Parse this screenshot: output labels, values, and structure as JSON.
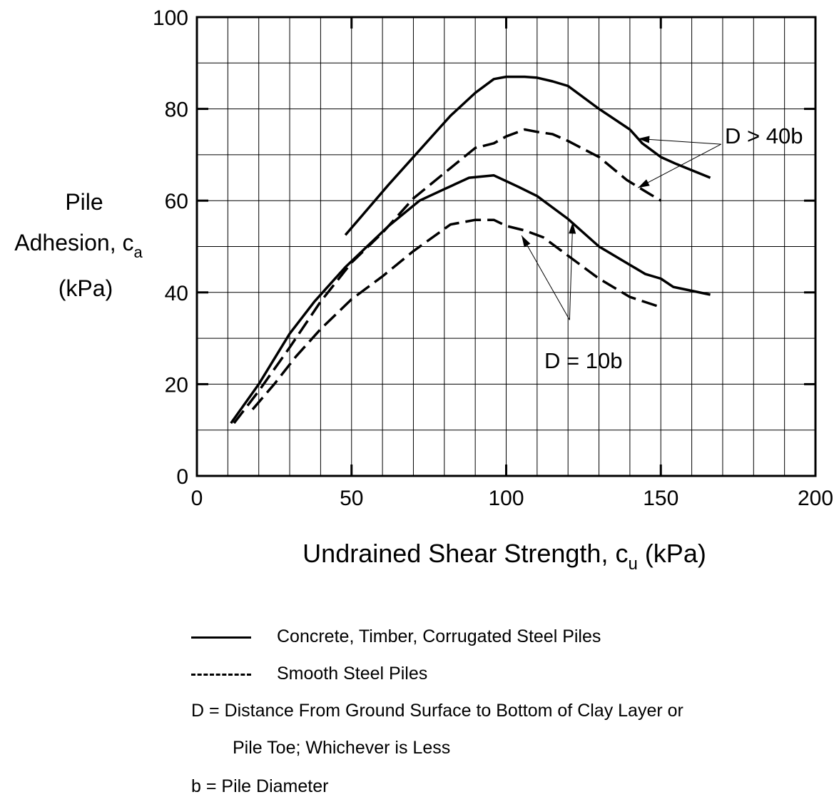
{
  "chart_data": {
    "type": "line",
    "title": "",
    "xlabel": "Undrained Shear Strength, c",
    "xlabel_sub": "u",
    "xlabel_unit": " (kPa)",
    "ylabel_lines": [
      "Pile",
      "Adhesion, c",
      "(kPa)"
    ],
    "ylabel_sub": "a",
    "xlim": [
      0,
      200
    ],
    "ylim": [
      0,
      100
    ],
    "x_ticks": [
      "0",
      "50",
      "100",
      "150",
      "200"
    ],
    "y_ticks": [
      "0",
      "20",
      "40",
      "60",
      "80",
      "100"
    ],
    "grid": true,
    "series": [
      {
        "style": "solid",
        "points": [
          [
            48,
            52.5
          ],
          [
            55,
            58
          ],
          [
            62,
            63.5
          ],
          [
            70,
            69.5
          ],
          [
            78,
            75.5
          ],
          [
            82,
            78.5
          ],
          [
            90,
            83.5
          ],
          [
            96,
            86.5
          ],
          [
            100,
            87
          ],
          [
            106,
            87
          ],
          [
            110,
            86.8
          ],
          [
            115,
            86
          ],
          [
            120,
            85
          ],
          [
            130,
            80
          ],
          [
            140,
            75.5
          ],
          [
            144,
            72.5
          ],
          [
            150,
            69.5
          ],
          [
            155,
            68
          ],
          [
            166,
            65
          ]
        ]
      },
      {
        "style": "dashed",
        "points": [
          [
            12,
            11.5
          ],
          [
            20,
            18.5
          ],
          [
            30,
            28
          ],
          [
            40,
            38
          ],
          [
            50,
            46.5
          ],
          [
            60,
            53
          ],
          [
            70,
            60.5
          ],
          [
            80,
            66
          ],
          [
            90,
            71.5
          ],
          [
            96,
            72.5
          ],
          [
            100,
            74
          ],
          [
            106,
            75.5
          ],
          [
            110,
            75
          ],
          [
            115,
            74.5
          ],
          [
            120,
            73
          ],
          [
            130,
            69.5
          ],
          [
            139,
            64.5
          ],
          [
            145,
            62
          ],
          [
            150,
            60
          ]
        ]
      },
      {
        "style": "solid",
        "points": [
          [
            11,
            11.5
          ],
          [
            20,
            20
          ],
          [
            30,
            31
          ],
          [
            38,
            38
          ],
          [
            48,
            45.5
          ],
          [
            55,
            50
          ],
          [
            62,
            54.5
          ],
          [
            72,
            60
          ],
          [
            80,
            62.5
          ],
          [
            88,
            65
          ],
          [
            96,
            65.5
          ],
          [
            104,
            63
          ],
          [
            110,
            61
          ],
          [
            120,
            56
          ],
          [
            130,
            50
          ],
          [
            140,
            46
          ],
          [
            145,
            44
          ],
          [
            150,
            43
          ],
          [
            154,
            41.2
          ],
          [
            166,
            39.5
          ]
        ]
      },
      {
        "style": "dashed",
        "points": [
          [
            18,
            14.5
          ],
          [
            25,
            20
          ],
          [
            32,
            26
          ],
          [
            40,
            32
          ],
          [
            50,
            38.5
          ],
          [
            60,
            43.5
          ],
          [
            70,
            49
          ],
          [
            82,
            54.8
          ],
          [
            90,
            55.8
          ],
          [
            96,
            55.8
          ],
          [
            100,
            54.5
          ],
          [
            106,
            53.5
          ],
          [
            112,
            52
          ],
          [
            120,
            48
          ],
          [
            130,
            43
          ],
          [
            140,
            39
          ],
          [
            149,
            37
          ]
        ]
      }
    ],
    "annotations": [
      {
        "text": "D > 40b",
        "x": 174,
        "y": 74
      },
      {
        "text": "D = 10b",
        "x": 112,
        "y": 24.5
      }
    ],
    "legend": [
      {
        "style": "solid",
        "label": "Concrete, Timber, Corrugated Steel Piles"
      },
      {
        "style": "dashed",
        "label": "Smooth Steel Piles"
      }
    ],
    "notes": [
      "D = Distance From Ground Surface to Bottom of Clay Layer or",
      "Pile Toe; Whichever is Less",
      "b = Pile Diameter"
    ]
  }
}
